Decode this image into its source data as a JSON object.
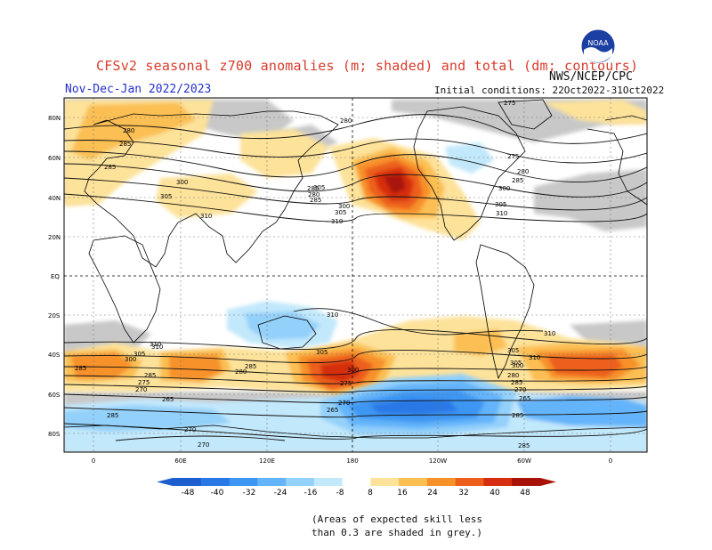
{
  "header": {
    "title": "CFSv2 seasonal z700 anomalies (m; shaded) and total (dm; contours)",
    "agency": "NWS/NCEP/CPC",
    "season": "Nov-Dec-Jan 2022/2023",
    "initial_conditions": "Initial conditions: 22Oct2022-31Oct2022",
    "logo_text": "NOAA"
  },
  "map": {
    "lat_labels": [
      "80N",
      "60N",
      "40N",
      "20N",
      "EQ",
      "20S",
      "40S",
      "60S",
      "80S"
    ],
    "lon_labels": [
      "0",
      "60E",
      "120E",
      "180",
      "120W",
      "60W",
      "0"
    ],
    "contour_labels": [
      "275",
      "280",
      "285",
      "285",
      "300",
      "305",
      "310",
      "280",
      "285",
      "300",
      "305",
      "310",
      "280",
      "285",
      "300",
      "305",
      "310",
      "275",
      "280",
      "285",
      "305",
      "310",
      "310",
      "305",
      "285",
      "300",
      "305",
      "310",
      "310",
      "305",
      "300",
      "285",
      "280",
      "275",
      "270",
      "265",
      "285",
      "280",
      "275",
      "270",
      "285",
      "270",
      "270",
      "285",
      "265",
      "285",
      "265",
      "300",
      "305",
      "310",
      "285",
      "270"
    ]
  },
  "colorbar": {
    "tick_labels": [
      "-48",
      "-40",
      "-32",
      "-24",
      "-16",
      "-8",
      "8",
      "16",
      "24",
      "32",
      "40",
      "48"
    ],
    "colors": [
      "#1e5fd0",
      "#2a78e6",
      "#3c96f2",
      "#63b4fa",
      "#93d0fa",
      "#c2e8fb",
      "#ffffff",
      "#fde29a",
      "#fbbf52",
      "#f79129",
      "#ec5e1c",
      "#d52e10",
      "#a81207"
    ]
  },
  "note": {
    "line1": "(Areas of expected skill less",
    "line2": "than 0.3 are shaded in grey.)"
  }
}
